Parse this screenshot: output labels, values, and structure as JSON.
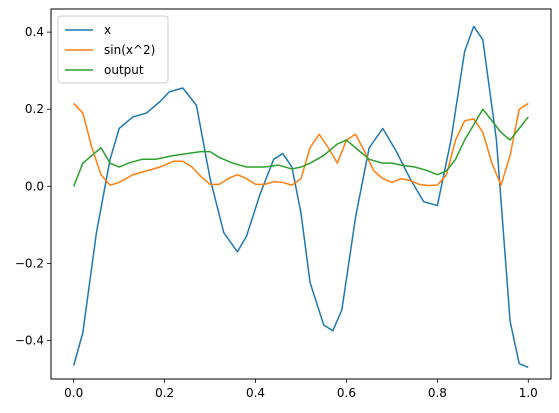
{
  "chart_data": {
    "type": "line",
    "title": "",
    "xlabel": "",
    "ylabel": "",
    "xlim": [
      -0.05,
      1.05
    ],
    "ylim": [
      -0.5,
      0.46
    ],
    "xticks": [
      0.0,
      0.2,
      0.4,
      0.6,
      0.8,
      1.0
    ],
    "xtick_labels": [
      "0.0",
      "0.2",
      "0.4",
      "0.6",
      "0.8",
      "1.0"
    ],
    "yticks": [
      -0.4,
      -0.2,
      0.0,
      0.2,
      0.4
    ],
    "ytick_labels": [
      "−0.4",
      "−0.2",
      "0.0",
      "0.2",
      "0.4"
    ],
    "grid": false,
    "legend": {
      "placement": "top-left"
    },
    "series": [
      {
        "name": "x",
        "color": "#1f77b4",
        "x": [
          0.0,
          0.02,
          0.05,
          0.08,
          0.1,
          0.13,
          0.16,
          0.19,
          0.21,
          0.24,
          0.27,
          0.3,
          0.33,
          0.36,
          0.38,
          0.41,
          0.44,
          0.46,
          0.48,
          0.5,
          0.52,
          0.55,
          0.57,
          0.59,
          0.62,
          0.65,
          0.68,
          0.71,
          0.74,
          0.77,
          0.8,
          0.83,
          0.86,
          0.88,
          0.9,
          0.93,
          0.96,
          0.98,
          1.0
        ],
        "y": [
          -0.465,
          -0.38,
          -0.12,
          0.07,
          0.15,
          0.18,
          0.19,
          0.22,
          0.245,
          0.255,
          0.21,
          0.02,
          -0.12,
          -0.17,
          -0.13,
          -0.02,
          0.07,
          0.085,
          0.05,
          -0.07,
          -0.25,
          -0.36,
          -0.375,
          -0.32,
          -0.08,
          0.1,
          0.15,
          0.09,
          0.02,
          -0.04,
          -0.05,
          0.12,
          0.35,
          0.415,
          0.38,
          0.12,
          -0.35,
          -0.46,
          -0.47
        ]
      },
      {
        "name": "sin(x^2)",
        "color": "#ff7f0e",
        "x": [
          0.0,
          0.02,
          0.04,
          0.06,
          0.08,
          0.1,
          0.13,
          0.16,
          0.19,
          0.22,
          0.24,
          0.26,
          0.28,
          0.3,
          0.32,
          0.34,
          0.36,
          0.38,
          0.4,
          0.42,
          0.44,
          0.46,
          0.48,
          0.5,
          0.52,
          0.54,
          0.56,
          0.58,
          0.6,
          0.62,
          0.64,
          0.66,
          0.68,
          0.7,
          0.72,
          0.74,
          0.76,
          0.78,
          0.8,
          0.82,
          0.84,
          0.86,
          0.88,
          0.9,
          0.92,
          0.94,
          0.96,
          0.98,
          1.0
        ],
        "y": [
          0.215,
          0.19,
          0.1,
          0.03,
          0.003,
          0.01,
          0.03,
          0.04,
          0.05,
          0.065,
          0.065,
          0.05,
          0.025,
          0.005,
          0.005,
          0.02,
          0.03,
          0.02,
          0.005,
          0.005,
          0.012,
          0.01,
          0.003,
          0.02,
          0.1,
          0.135,
          0.1,
          0.06,
          0.12,
          0.135,
          0.09,
          0.04,
          0.02,
          0.01,
          0.02,
          0.015,
          0.005,
          0.002,
          0.003,
          0.03,
          0.12,
          0.17,
          0.175,
          0.14,
          0.06,
          0.003,
          0.08,
          0.2,
          0.215
        ]
      },
      {
        "name": "output",
        "color": "#2ca02c",
        "x": [
          0.0,
          0.02,
          0.04,
          0.06,
          0.08,
          0.1,
          0.12,
          0.15,
          0.18,
          0.2,
          0.22,
          0.25,
          0.28,
          0.3,
          0.32,
          0.35,
          0.38,
          0.4,
          0.42,
          0.45,
          0.48,
          0.5,
          0.52,
          0.55,
          0.58,
          0.6,
          0.62,
          0.65,
          0.68,
          0.7,
          0.72,
          0.75,
          0.78,
          0.8,
          0.82,
          0.84,
          0.86,
          0.88,
          0.9,
          0.92,
          0.94,
          0.96,
          0.98,
          1.0
        ],
        "y": [
          0.0,
          0.06,
          0.08,
          0.1,
          0.06,
          0.05,
          0.06,
          0.07,
          0.07,
          0.075,
          0.08,
          0.085,
          0.09,
          0.09,
          0.075,
          0.06,
          0.05,
          0.05,
          0.05,
          0.055,
          0.045,
          0.05,
          0.06,
          0.08,
          0.11,
          0.12,
          0.1,
          0.07,
          0.06,
          0.06,
          0.055,
          0.05,
          0.04,
          0.03,
          0.04,
          0.07,
          0.12,
          0.16,
          0.2,
          0.17,
          0.14,
          0.12,
          0.15,
          0.18
        ]
      }
    ]
  }
}
